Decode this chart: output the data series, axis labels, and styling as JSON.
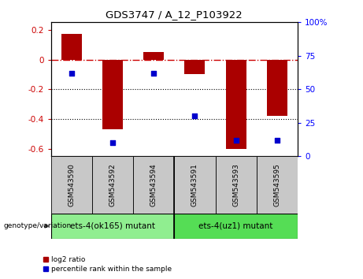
{
  "title": "GDS3747 / A_12_P103922",
  "samples": [
    "GSM543590",
    "GSM543592",
    "GSM543594",
    "GSM543591",
    "GSM543593",
    "GSM543595"
  ],
  "log2_ratios": [
    0.17,
    -0.47,
    0.05,
    -0.1,
    -0.6,
    -0.38
  ],
  "percentile_ranks": [
    62,
    10,
    62,
    30,
    12,
    12
  ],
  "groups": [
    {
      "label": "ets-4(ok165) mutant",
      "samples": [
        0,
        1,
        2
      ],
      "color": "#90EE90"
    },
    {
      "label": "ets-4(uz1) mutant",
      "samples": [
        3,
        4,
        5
      ],
      "color": "#55DD55"
    }
  ],
  "ylim_left": [
    -0.65,
    0.25
  ],
  "ylim_right": [
    0,
    100
  ],
  "bar_color": "#AA0000",
  "dot_color": "#0000CC",
  "hline_color": "#CC0000",
  "dotted_lines": [
    -0.2,
    -0.4
  ],
  "right_yticks": [
    0,
    25,
    50,
    75,
    100
  ],
  "right_yticklabels": [
    "0",
    "25",
    "50",
    "75",
    "100%"
  ],
  "left_yticks": [
    0.2,
    0,
    -0.2,
    -0.4,
    -0.6
  ],
  "left_yticklabels": [
    "0.2",
    "0",
    "-0.2",
    "-0.4",
    "-0.6"
  ],
  "bar_width": 0.5,
  "sample_box_color": "#C8C8C8",
  "genotype_label": "genotype/variation",
  "legend_labels": [
    "log2 ratio",
    "percentile rank within the sample"
  ]
}
